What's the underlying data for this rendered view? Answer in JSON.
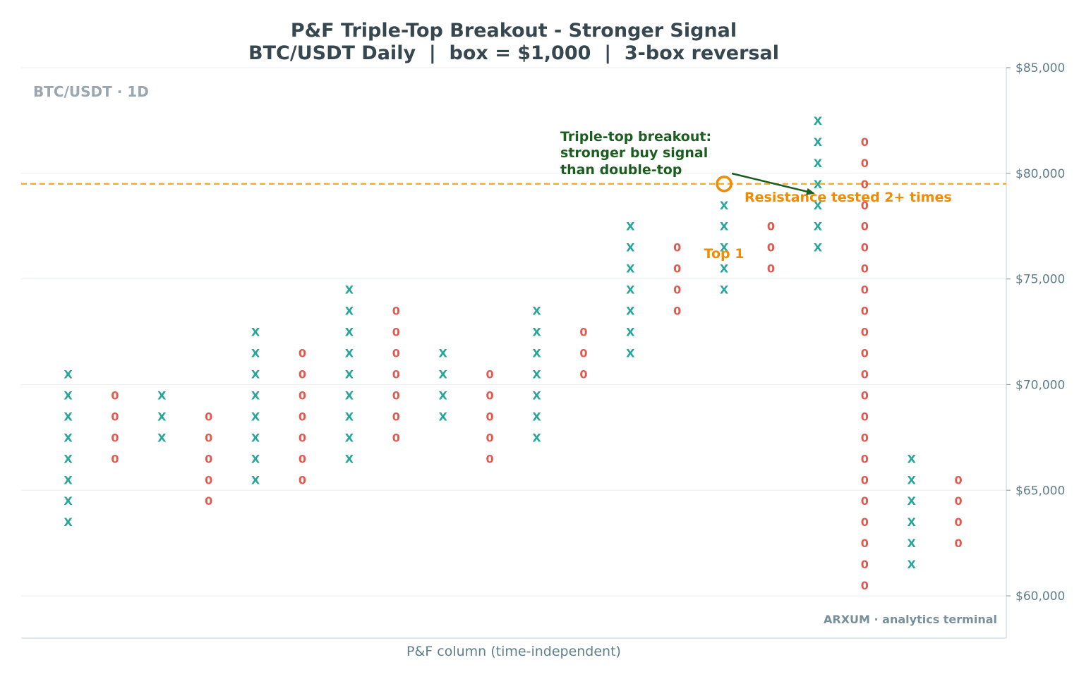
{
  "chart_data": {
    "type": "point-and-figure",
    "title": "P&F Triple-Top Breakout - Stronger Signal",
    "subtitle": "BTC/USDT Daily  |  box = $1,000  |  3-box reversal",
    "xlabel": "P&F column (time-independent)",
    "ylabel": "",
    "ylim": [
      58000,
      85000
    ],
    "yticks": [
      60000,
      65000,
      70000,
      75000,
      80000,
      85000
    ],
    "ytick_labels": [
      "$60,000",
      "$65,000",
      "$70,000",
      "$75,000",
      "$80,000",
      "$85,000"
    ],
    "grid": true,
    "box_size": 1000,
    "columns": [
      {
        "index": 0,
        "type": "X",
        "low": 64000,
        "high": 71000
      },
      {
        "index": 1,
        "type": "O",
        "low": 67000,
        "high": 70000
      },
      {
        "index": 2,
        "type": "X",
        "low": 68000,
        "high": 70000
      },
      {
        "index": 3,
        "type": "O",
        "low": 65000,
        "high": 69000
      },
      {
        "index": 4,
        "type": "X",
        "low": 66000,
        "high": 73000
      },
      {
        "index": 5,
        "type": "O",
        "low": 66000,
        "high": 72000
      },
      {
        "index": 6,
        "type": "X",
        "low": 67000,
        "high": 75000
      },
      {
        "index": 7,
        "type": "O",
        "low": 68000,
        "high": 74000
      },
      {
        "index": 8,
        "type": "X",
        "low": 69000,
        "high": 72000
      },
      {
        "index": 9,
        "type": "O",
        "low": 67000,
        "high": 71000
      },
      {
        "index": 10,
        "type": "X",
        "low": 68000,
        "high": 74000
      },
      {
        "index": 11,
        "type": "O",
        "low": 71000,
        "high": 73000
      },
      {
        "index": 12,
        "type": "X",
        "low": 72000,
        "high": 78000
      },
      {
        "index": 13,
        "type": "O",
        "low": 74000,
        "high": 77000
      },
      {
        "index": 14,
        "type": "X",
        "low": 75000,
        "high": 79000
      },
      {
        "index": 15,
        "type": "O",
        "low": 76000,
        "high": 78000
      },
      {
        "index": 16,
        "type": "X",
        "low": 77000,
        "high": 83000
      },
      {
        "index": 17,
        "type": "O",
        "low": 61000,
        "high": 82000
      },
      {
        "index": 18,
        "type": "X",
        "low": 62000,
        "high": 67000
      },
      {
        "index": 19,
        "type": "O",
        "low": 63000,
        "high": 66000
      }
    ],
    "resistance_level": 79000,
    "annotations": {
      "top1_label": "Top 1",
      "resistance_label": "Resistance tested 2+ times",
      "breakout_lines": [
        "Triple-top breakout:",
        "stronger buy signal",
        "than double-top"
      ]
    },
    "watermark": "BTC/USDT · 1D",
    "credit": "ARXUM · analytics terminal",
    "colors": {
      "x_mark": "#26a69a",
      "o_mark": "#e05a50",
      "resistance": "#f5a623",
      "circle": "#f08c00",
      "annotation_green": "#1b5e20",
      "grid": "#eceff1",
      "axis": "#cfd8dc"
    }
  }
}
